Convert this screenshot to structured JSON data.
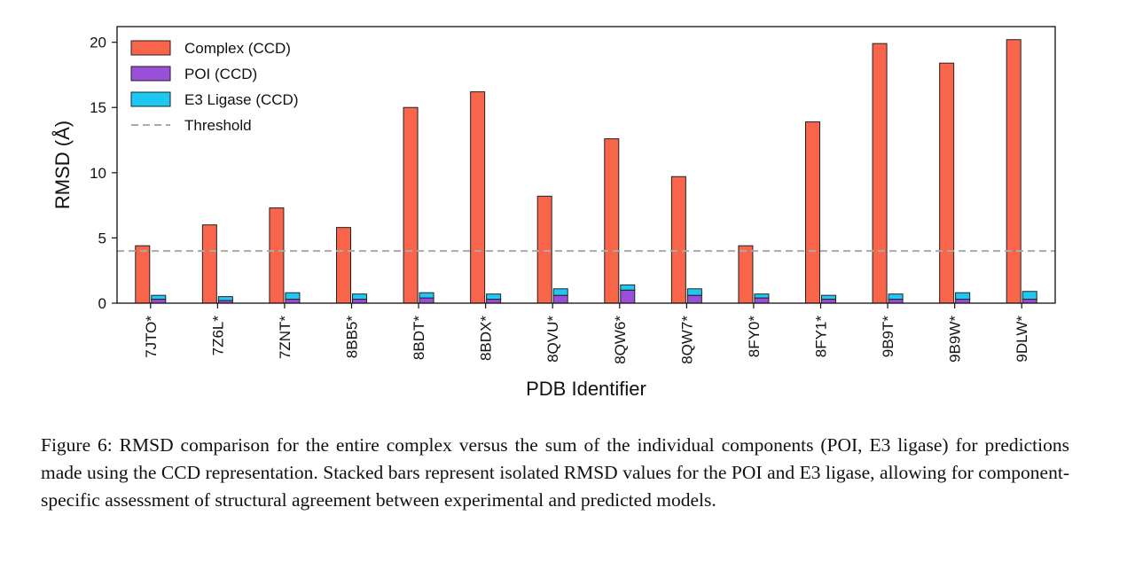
{
  "chart_data": {
    "type": "bar",
    "xlabel": "PDB Identifier",
    "ylabel": "RMSD (Å)",
    "ylim": [
      0,
      21.2
    ],
    "yticks": [
      0,
      5,
      10,
      15,
      20
    ],
    "categories": [
      "7JTO*",
      "7Z6L*",
      "7ZNT*",
      "8BB5*",
      "8BDT*",
      "8BDX*",
      "8QVU*",
      "8QW6*",
      "8QW7*",
      "8FY0*",
      "8FY1*",
      "9B9T*",
      "9B9W*",
      "9DLW*"
    ],
    "series": [
      {
        "name": "Complex (CCD)",
        "color": "#f8654a",
        "values": [
          4.4,
          6.0,
          7.3,
          5.8,
          15.0,
          16.2,
          8.2,
          12.6,
          9.7,
          4.4,
          13.9,
          19.9,
          18.4,
          20.2
        ]
      },
      {
        "name": "POI (CCD)",
        "color": "#9a4fd9",
        "values": [
          0.3,
          0.2,
          0.3,
          0.3,
          0.4,
          0.3,
          0.6,
          1.0,
          0.6,
          0.4,
          0.3,
          0.3,
          0.3,
          0.3
        ]
      },
      {
        "name": "E3 Ligase (CCD)",
        "color": "#1fc8f2",
        "values": [
          0.3,
          0.3,
          0.5,
          0.4,
          0.4,
          0.4,
          0.5,
          0.4,
          0.5,
          0.3,
          0.3,
          0.4,
          0.5,
          0.6
        ]
      }
    ],
    "threshold": {
      "name": "Threshold",
      "value": 4.0,
      "color": "#aaaaaa"
    },
    "legend_position": "top-left",
    "grid": false
  },
  "caption": {
    "text": "Figure 6: RMSD comparison for the entire complex versus the sum of the individual components (POI, E3 ligase) for predictions made using the CCD representation. Stacked bars represent isolated RMSD values for the POI and E3 ligase, allowing for component-specific assessment of structural agreement between experimental and predicted models."
  }
}
